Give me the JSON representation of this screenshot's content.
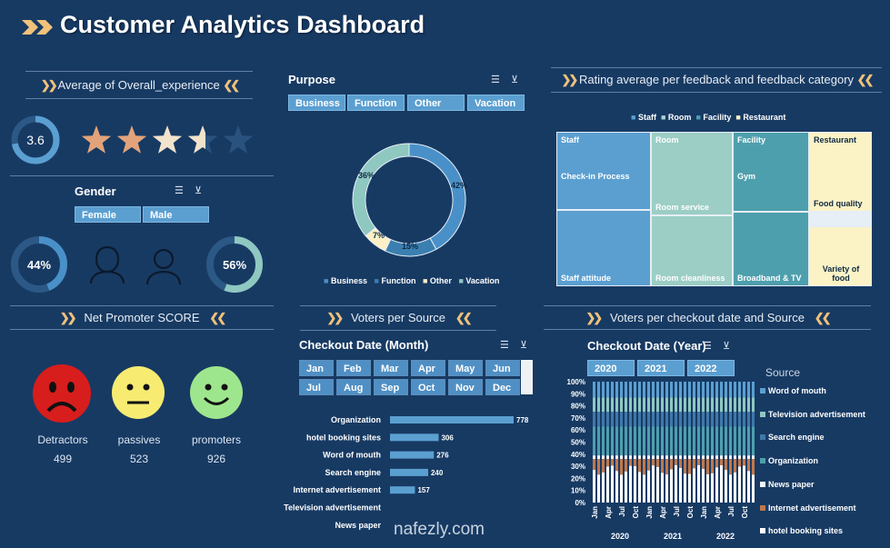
{
  "title": "Customer Analytics Dashboard",
  "avg_experience": {
    "title": "Average of Overall_experience",
    "value": "3.6",
    "rating": 3.6,
    "stars_max": 5
  },
  "gender": {
    "title": "Gender",
    "buttons": [
      "Female",
      "Male"
    ],
    "female_pct": "44%",
    "male_pct": "56%",
    "female_value": 0.44,
    "male_value": 0.56
  },
  "purpose": {
    "title": "Purpose",
    "buttons": [
      "Business",
      "Function",
      "Other",
      "Vacation"
    ],
    "labels": [
      "42%",
      "15%",
      "7%",
      "36%"
    ],
    "legend": [
      "Business",
      "Function",
      "Other",
      "Vacation"
    ]
  },
  "rating_section": {
    "title": "Rating average per feedback and feedback category",
    "legend": [
      "Staff",
      "Room",
      "Facility",
      "Restaurant"
    ],
    "cells": {
      "staff": "Staff",
      "checkin": "Check-in Process",
      "staff_attitude": "Staff attitude",
      "room": "Room",
      "room_service": "Room service",
      "room_cleanliness": "Room cleanliness",
      "facility": "Facility",
      "gym": "Gym",
      "broadband": "Broadband & TV",
      "restaurant": "Restaurant",
      "food_quality": "Food quality",
      "variety": "Variety of food"
    }
  },
  "nps": {
    "title": "Net Promoter SCORE",
    "labels": [
      "Detractors",
      "passives",
      "promoters"
    ],
    "values": [
      "499",
      "523",
      "926"
    ]
  },
  "voters_source": {
    "title": "Voters per Source",
    "slicer_title": "Checkout Date (Month)",
    "months": [
      "Jan",
      "Feb",
      "Mar",
      "Apr",
      "May",
      "Jun",
      "Jul",
      "Aug",
      "Sep",
      "Oct",
      "Nov",
      "Dec"
    ]
  },
  "voters_checkout": {
    "title": "Voters per checkout date and Source",
    "slicer_title": "Checkout Date (Year)",
    "years": [
      "2020",
      "2021",
      "2022"
    ],
    "legend_title": "Source",
    "legend": [
      "Word of mouth",
      "Television advertisement",
      "Search engine",
      "Organization",
      "News paper",
      "Internet advertisement",
      "hotel booking sites"
    ],
    "y_ticks": [
      "100%",
      "90%",
      "80%",
      "70%",
      "60%",
      "50%",
      "40%",
      "30%",
      "20%",
      "10%",
      "0%"
    ],
    "x_months": [
      "Jan",
      "Apr",
      "Jul",
      "Oct",
      "Jan",
      "Apr",
      "Jul",
      "Oct",
      "Jan",
      "Apr",
      "Jul",
      "Oct"
    ],
    "x_years": [
      "2020",
      "2021",
      "2022"
    ]
  },
  "watermark": "nafezly.com",
  "colors": {
    "background": "#173a63",
    "accent": "#5b9fd1",
    "chevron": "#f0c27a",
    "business": "#4a90c8",
    "function": "#3b7fb0",
    "other": "#fbf0c5",
    "vacation": "#8fc7c1"
  },
  "chart_data": [
    {
      "type": "bar",
      "title": "",
      "categories": [
        "Organization",
        "hotel booking sites",
        "Word of mouth",
        "Search engine",
        "Internet advertisement",
        "Television advertisement",
        "News paper"
      ],
      "values": [
        778,
        306,
        276,
        240,
        157,
        0,
        0
      ],
      "value_labels": [
        "778",
        "306",
        "276",
        "240",
        "157",
        "",
        ""
      ]
    },
    {
      "type": "pie",
      "title": "",
      "categories": [
        "Business",
        "Function",
        "Other",
        "Vacation"
      ],
      "values": [
        42,
        15,
        7,
        36
      ]
    }
  ]
}
